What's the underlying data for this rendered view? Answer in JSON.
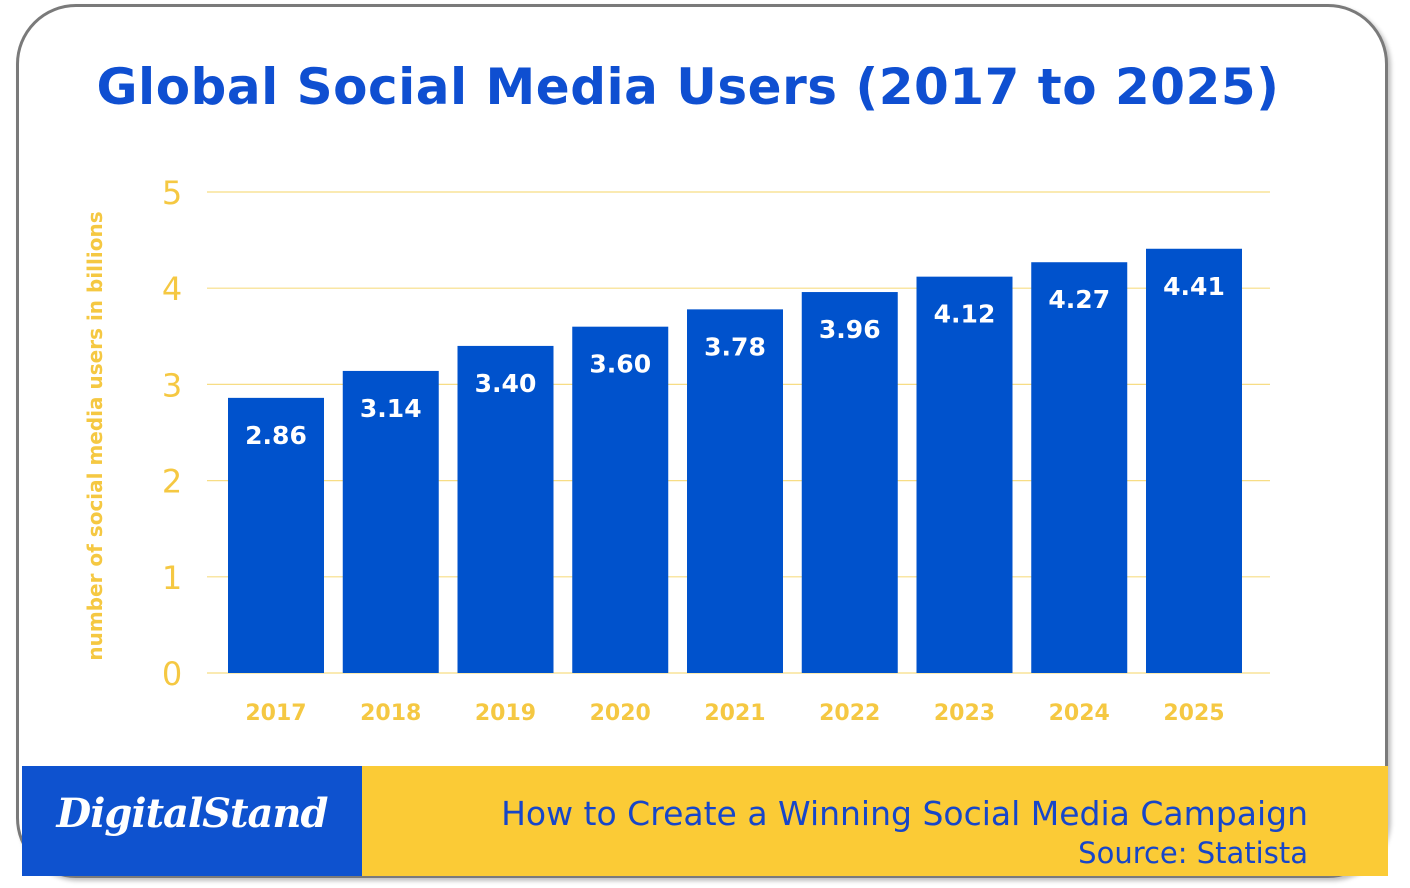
{
  "chart_data": {
    "type": "bar",
    "title": "Global Social Media Users (2017 to 2025)",
    "ylabel": "number of social media users in billions",
    "xlabel": "",
    "categories": [
      "2017",
      "2018",
      "2019",
      "2020",
      "2021",
      "2022",
      "2023",
      "2024",
      "2025"
    ],
    "values": [
      2.86,
      3.14,
      3.4,
      3.6,
      3.78,
      3.96,
      4.12,
      4.27,
      4.41
    ],
    "value_labels": [
      "2.86",
      "3.14",
      "3.40",
      "3.60",
      "3.78",
      "3.96",
      "4.12",
      "4.27",
      "4.41"
    ],
    "ylim": [
      0,
      5
    ],
    "yticks": [
      "0",
      "1",
      "2",
      "3",
      "4",
      "5"
    ],
    "grid": true,
    "colors": {
      "bar": "#0052cc",
      "axis_text": "#f5c842",
      "gridline": "#f7dd85",
      "value_label": "#ffffff"
    }
  },
  "footer": {
    "logo_text": "DigitalStand",
    "line1": "How to Create a Winning Social Media Campaign",
    "line2": "Source: Statista"
  },
  "colors": {
    "title": "#0f4fd1",
    "footer_left_bg": "#0e52cf",
    "footer_right_bg": "#fbcb36",
    "footer_text": "#1746c9",
    "border": "#7a7a7a"
  }
}
